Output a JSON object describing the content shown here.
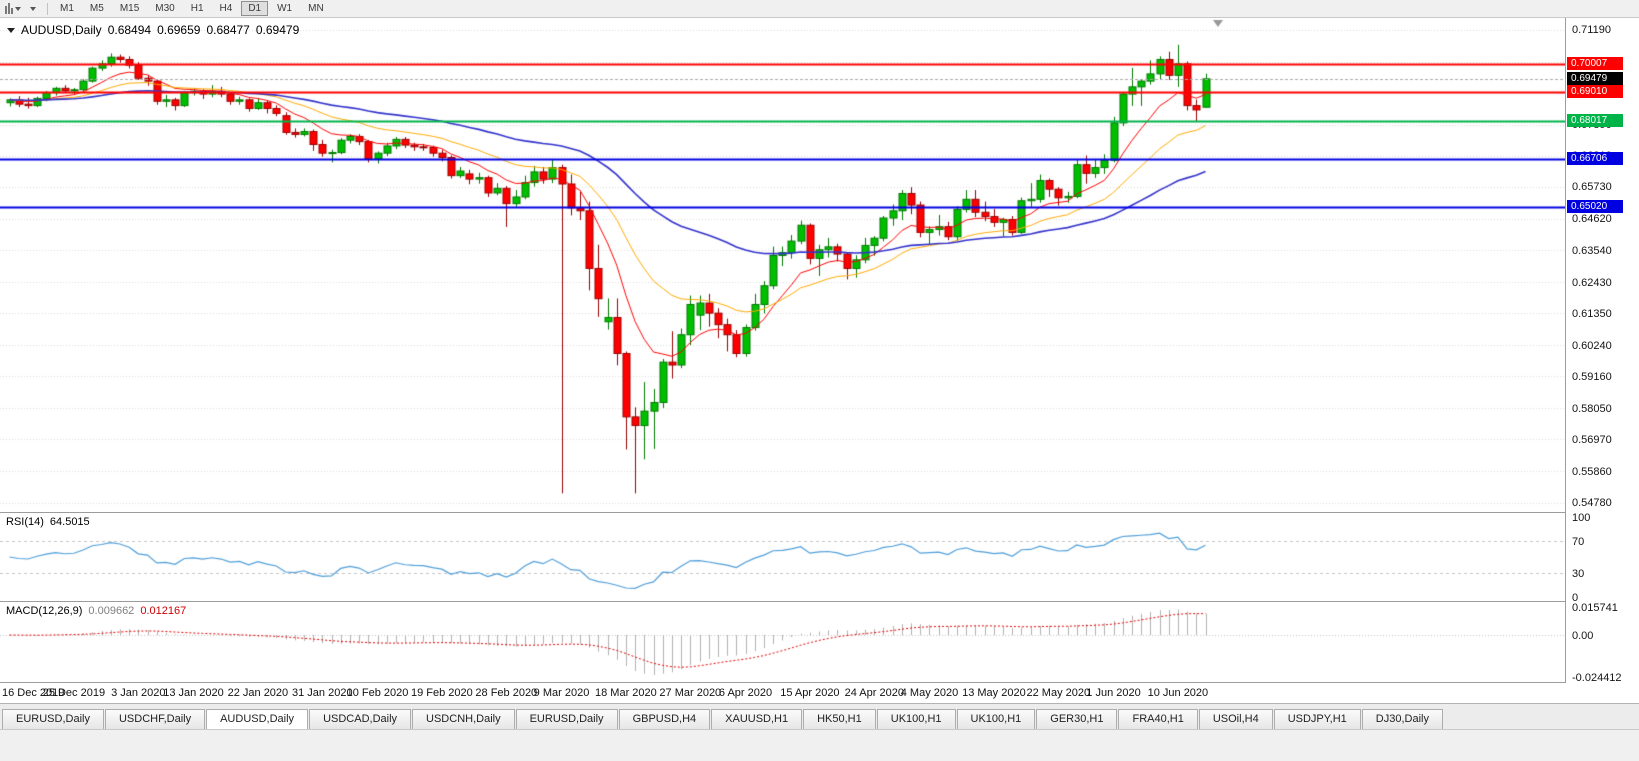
{
  "toolbar": {
    "timeframes": [
      "M1",
      "M5",
      "M15",
      "M30",
      "H1",
      "H4",
      "D1",
      "W1",
      "MN"
    ],
    "active_timeframe": "D1"
  },
  "chart": {
    "symbol_period": "AUDUSD,Daily",
    "open": "0.68494",
    "high": "0.69659",
    "low": "0.68477",
    "close": "0.69479"
  },
  "rsi_label": {
    "name": "RSI(14)",
    "value": "64.5015"
  },
  "macd_label": {
    "name": "MACD(12,26,9)",
    "main": "0.009662",
    "signal": "0.012167"
  },
  "tabs": [
    "EURUSD,Daily",
    "USDCHF,Daily",
    "AUDUSD,Daily",
    "USDCAD,Daily",
    "USDCNH,Daily",
    "EURUSD,Daily",
    "GBPUSD,H4",
    "XAUUSD,H1",
    "HK50,H1",
    "UK100,H1",
    "UK100,H1",
    "GER30,H1",
    "FRA40,H1",
    "USOil,H4",
    "USDJPY,H1",
    "DJ30,Daily"
  ],
  "active_tab_index": 2,
  "chart_data": {
    "type": "candlestick",
    "symbol": "AUDUSD",
    "timeframe": "Daily",
    "price_scale": {
      "top": 0.7152,
      "bottom": 0.5452
    },
    "y_ticks": [
      0.7119,
      0.7008,
      0.6897,
      0.6789,
      0.6681,
      0.6573,
      0.6462,
      0.6354,
      0.6243,
      0.6135,
      0.6024,
      0.5916,
      0.5805,
      0.5697,
      0.5586,
      0.5478
    ],
    "current_price": 0.69479,
    "hlines": [
      {
        "value": 0.70007,
        "color": "#ff0000",
        "width": 2
      },
      {
        "value": 0.6901,
        "color": "#ff0000",
        "width": 2
      },
      {
        "value": 0.68017,
        "color": "#00b44a",
        "width": 2
      },
      {
        "value": 0.66706,
        "color": "#0000e0",
        "width": 2
      },
      {
        "value": 0.6502,
        "color": "#0000e0",
        "width": 2
      }
    ],
    "moving_averages": [
      {
        "period": 9,
        "color": "#ff0000",
        "width": 1
      },
      {
        "period": 21,
        "color": "#ffaa00",
        "width": 1
      },
      {
        "period": 50,
        "color": "#3333cc",
        "width": 1.6
      }
    ],
    "colors": {
      "up_fill": "#00bf00",
      "up_stroke": "#007a00",
      "down_fill": "#ff0000",
      "down_stroke": "#990000",
      "grid": "#dcdcdc",
      "current_line": "#aaaaaa"
    },
    "rsi": {
      "period": 14,
      "last": 64.5015,
      "levels": [
        100,
        70,
        30,
        0
      ],
      "color": "#4f9ed9"
    },
    "macd": {
      "fast": 12,
      "slow": 26,
      "signal": 9,
      "last_main": 0.009662,
      "last_signal": 0.012167,
      "axis_labels": [
        0.015741,
        0,
        -0.024412
      ],
      "bar_color": "#b0b0b0",
      "signal_color": "#e00000"
    },
    "macd_scale": {
      "top": 0.019,
      "bottom": -0.027
    },
    "x_labels": [
      "16 Dec 2019",
      "25 Dec 2019",
      "3 Jan 2020",
      "13 Jan 2020",
      "22 Jan 2020",
      "31 Jan 2020",
      "10 Feb 2020",
      "19 Feb 2020",
      "28 Feb 2020",
      "9 Mar 2020",
      "18 Mar 2020",
      "27 Mar 2020",
      "6 Apr 2020",
      "15 Apr 2020",
      "24 Apr 2020",
      "4 May 2020",
      "13 May 2020",
      "22 May 2020",
      "1 Jun 2020",
      "10 Jun 2020"
    ],
    "x_label_positions": [
      0,
      7,
      14,
      20,
      27,
      34,
      40,
      47,
      54,
      60,
      67,
      74,
      80,
      87,
      94,
      100,
      107,
      114,
      120,
      127
    ],
    "candles": [
      [
        0.6865,
        0.688,
        0.6852,
        0.6875
      ],
      [
        0.6875,
        0.6888,
        0.685,
        0.686
      ],
      [
        0.686,
        0.6882,
        0.6845,
        0.6855
      ],
      [
        0.6855,
        0.6886,
        0.685,
        0.688
      ],
      [
        0.688,
        0.6906,
        0.687,
        0.69
      ],
      [
        0.69,
        0.692,
        0.689,
        0.6915
      ],
      [
        0.6915,
        0.6926,
        0.69,
        0.6906
      ],
      [
        0.6906,
        0.6916,
        0.6895,
        0.691
      ],
      [
        0.691,
        0.6946,
        0.6905,
        0.694
      ],
      [
        0.694,
        0.699,
        0.6935,
        0.6985
      ],
      [
        0.6985,
        0.7012,
        0.6975,
        0.7
      ],
      [
        0.7,
        0.7036,
        0.699,
        0.7023
      ],
      [
        0.7023,
        0.7032,
        0.7004,
        0.7015
      ],
      [
        0.7015,
        0.7026,
        0.6984,
        0.6995
      ],
      [
        0.6995,
        0.7006,
        0.6944,
        0.695
      ],
      [
        0.695,
        0.6962,
        0.6924,
        0.694
      ],
      [
        0.694,
        0.6946,
        0.6858,
        0.687
      ],
      [
        0.687,
        0.6892,
        0.685,
        0.6875
      ],
      [
        0.6875,
        0.6882,
        0.6838,
        0.6855
      ],
      [
        0.6855,
        0.6906,
        0.685,
        0.69
      ],
      [
        0.69,
        0.6916,
        0.689,
        0.6905
      ],
      [
        0.6905,
        0.6912,
        0.6878,
        0.6895
      ],
      [
        0.6895,
        0.6926,
        0.6884,
        0.6905
      ],
      [
        0.6905,
        0.692,
        0.6884,
        0.6895
      ],
      [
        0.6895,
        0.6902,
        0.6858,
        0.687
      ],
      [
        0.687,
        0.6886,
        0.6858,
        0.6875
      ],
      [
        0.6875,
        0.688,
        0.6834,
        0.6845
      ],
      [
        0.6845,
        0.688,
        0.684,
        0.6865
      ],
      [
        0.6865,
        0.6872,
        0.6828,
        0.6845
      ],
      [
        0.6845,
        0.6856,
        0.6818,
        0.6828
      ],
      [
        0.682,
        0.6832,
        0.6754,
        0.6762
      ],
      [
        0.6762,
        0.6776,
        0.6744,
        0.6755
      ],
      [
        0.6755,
        0.6776,
        0.6748,
        0.6765
      ],
      [
        0.6765,
        0.6772,
        0.6698,
        0.672
      ],
      [
        0.672,
        0.6736,
        0.6678,
        0.669
      ],
      [
        0.669,
        0.6702,
        0.6658,
        0.6692
      ],
      [
        0.6692,
        0.6742,
        0.6686,
        0.6735
      ],
      [
        0.6735,
        0.6756,
        0.6724,
        0.6748
      ],
      [
        0.6748,
        0.6756,
        0.6718,
        0.673
      ],
      [
        0.673,
        0.6736,
        0.6658,
        0.667
      ],
      [
        0.667,
        0.6696,
        0.6654,
        0.669
      ],
      [
        0.669,
        0.6726,
        0.668,
        0.6715
      ],
      [
        0.6715,
        0.6746,
        0.6704,
        0.6738
      ],
      [
        0.6738,
        0.6746,
        0.6708,
        0.6718
      ],
      [
        0.6718,
        0.6726,
        0.6698,
        0.6712
      ],
      [
        0.6712,
        0.6722,
        0.6698,
        0.671
      ],
      [
        0.671,
        0.6716,
        0.6678,
        0.669
      ],
      [
        0.669,
        0.6702,
        0.6662,
        0.6675
      ],
      [
        0.6675,
        0.6682,
        0.6602,
        0.6612
      ],
      [
        0.6612,
        0.6642,
        0.6604,
        0.6628
      ],
      [
        0.6618,
        0.6632,
        0.6582,
        0.66
      ],
      [
        0.66,
        0.6622,
        0.6584,
        0.6605
      ],
      [
        0.6605,
        0.6612,
        0.6538,
        0.6552
      ],
      [
        0.6552,
        0.6586,
        0.6544,
        0.6568
      ],
      [
        0.6568,
        0.6576,
        0.6434,
        0.6515
      ],
      [
        0.6515,
        0.6562,
        0.6504,
        0.6538
      ],
      [
        0.6538,
        0.6612,
        0.653,
        0.6588
      ],
      [
        0.6588,
        0.6646,
        0.6574,
        0.6625
      ],
      [
        0.6625,
        0.6642,
        0.6584,
        0.66
      ],
      [
        0.66,
        0.6666,
        0.6586,
        0.664
      ],
      [
        0.664,
        0.665,
        0.551,
        0.6583
      ],
      [
        0.6583,
        0.6616,
        0.6474,
        0.65
      ],
      [
        0.65,
        0.6556,
        0.6458,
        0.649
      ],
      [
        0.649,
        0.6522,
        0.6214,
        0.629
      ],
      [
        0.629,
        0.6372,
        0.6122,
        0.6185
      ],
      [
        0.6105,
        0.6186,
        0.6078,
        0.612
      ],
      [
        0.612,
        0.6186,
        0.5954,
        0.5995
      ],
      [
        0.5995,
        0.6002,
        0.5662,
        0.5775
      ],
      [
        0.5775,
        0.5808,
        0.551,
        0.5745
      ],
      [
        0.5745,
        0.5896,
        0.5628,
        0.5795
      ],
      [
        0.5795,
        0.5872,
        0.5664,
        0.5825
      ],
      [
        0.5825,
        0.5976,
        0.5806,
        0.5965
      ],
      [
        0.5965,
        0.6072,
        0.5908,
        0.5955
      ],
      [
        0.5955,
        0.6082,
        0.5944,
        0.606
      ],
      [
        0.606,
        0.6196,
        0.6024,
        0.6165
      ],
      [
        0.6128,
        0.6196,
        0.6076,
        0.617
      ],
      [
        0.617,
        0.6202,
        0.6088,
        0.6135
      ],
      [
        0.6135,
        0.6152,
        0.6048,
        0.6095
      ],
      [
        0.6095,
        0.6116,
        0.6002,
        0.606
      ],
      [
        0.606,
        0.6076,
        0.5982,
        0.5995
      ],
      [
        0.5995,
        0.6096,
        0.5984,
        0.6085
      ],
      [
        0.6085,
        0.6202,
        0.6074,
        0.6165
      ],
      [
        0.6165,
        0.6246,
        0.6134,
        0.623
      ],
      [
        0.623,
        0.6366,
        0.6218,
        0.6335
      ],
      [
        0.6335,
        0.6366,
        0.6298,
        0.6345
      ],
      [
        0.6345,
        0.6406,
        0.6324,
        0.6385
      ],
      [
        0.6385,
        0.6456,
        0.6374,
        0.644
      ],
      [
        0.644,
        0.6446,
        0.6304,
        0.6325
      ],
      [
        0.6325,
        0.6372,
        0.6264,
        0.6355
      ],
      [
        0.6355,
        0.6396,
        0.6328,
        0.6365
      ],
      [
        0.6365,
        0.6376,
        0.6314,
        0.634
      ],
      [
        0.634,
        0.6346,
        0.6252,
        0.629
      ],
      [
        0.629,
        0.6336,
        0.6258,
        0.632
      ],
      [
        0.632,
        0.6396,
        0.6308,
        0.637
      ],
      [
        0.637,
        0.6402,
        0.6334,
        0.6395
      ],
      [
        0.6395,
        0.6472,
        0.6384,
        0.6465
      ],
      [
        0.6465,
        0.6512,
        0.6438,
        0.649
      ],
      [
        0.649,
        0.6562,
        0.6458,
        0.655
      ],
      [
        0.655,
        0.6572,
        0.6478,
        0.651
      ],
      [
        0.651,
        0.6522,
        0.6398,
        0.6415
      ],
      [
        0.6415,
        0.6436,
        0.6372,
        0.6425
      ],
      [
        0.6425,
        0.6476,
        0.6404,
        0.6435
      ],
      [
        0.6435,
        0.6452,
        0.6388,
        0.64
      ],
      [
        0.64,
        0.6506,
        0.6386,
        0.6495
      ],
      [
        0.6495,
        0.6562,
        0.6484,
        0.653
      ],
      [
        0.653,
        0.6562,
        0.6468,
        0.6485
      ],
      [
        0.6485,
        0.6522,
        0.6454,
        0.647
      ],
      [
        0.647,
        0.6496,
        0.6434,
        0.645
      ],
      [
        0.645,
        0.6466,
        0.6402,
        0.646
      ],
      [
        0.646,
        0.6472,
        0.6404,
        0.6415
      ],
      [
        0.6415,
        0.6536,
        0.641,
        0.6525
      ],
      [
        0.6525,
        0.6586,
        0.6504,
        0.653
      ],
      [
        0.653,
        0.6616,
        0.6518,
        0.6595
      ],
      [
        0.6595,
        0.6602,
        0.6538,
        0.6565
      ],
      [
        0.6565,
        0.6572,
        0.6508,
        0.6535
      ],
      [
        0.6535,
        0.6556,
        0.6518,
        0.654
      ],
      [
        0.654,
        0.6666,
        0.6534,
        0.665
      ],
      [
        0.665,
        0.6682,
        0.6584,
        0.662
      ],
      [
        0.662,
        0.6666,
        0.6604,
        0.664
      ],
      [
        0.664,
        0.6686,
        0.6618,
        0.6665
      ],
      [
        0.6665,
        0.6816,
        0.6658,
        0.6795
      ],
      [
        0.6795,
        0.6902,
        0.6784,
        0.6895
      ],
      [
        0.6895,
        0.6986,
        0.6854,
        0.692
      ],
      [
        0.692,
        0.6946,
        0.6854,
        0.694
      ],
      [
        0.694,
        0.7012,
        0.6928,
        0.6965
      ],
      [
        0.6965,
        0.7026,
        0.6944,
        0.7015
      ],
      [
        0.7015,
        0.7042,
        0.6944,
        0.696
      ],
      [
        0.696,
        0.7066,
        0.692,
        0.7
      ],
      [
        0.7,
        0.7008,
        0.6838,
        0.6855
      ],
      [
        0.6855,
        0.6876,
        0.6798,
        0.684
      ],
      [
        0.68494,
        0.69659,
        0.68477,
        0.69479
      ]
    ]
  }
}
